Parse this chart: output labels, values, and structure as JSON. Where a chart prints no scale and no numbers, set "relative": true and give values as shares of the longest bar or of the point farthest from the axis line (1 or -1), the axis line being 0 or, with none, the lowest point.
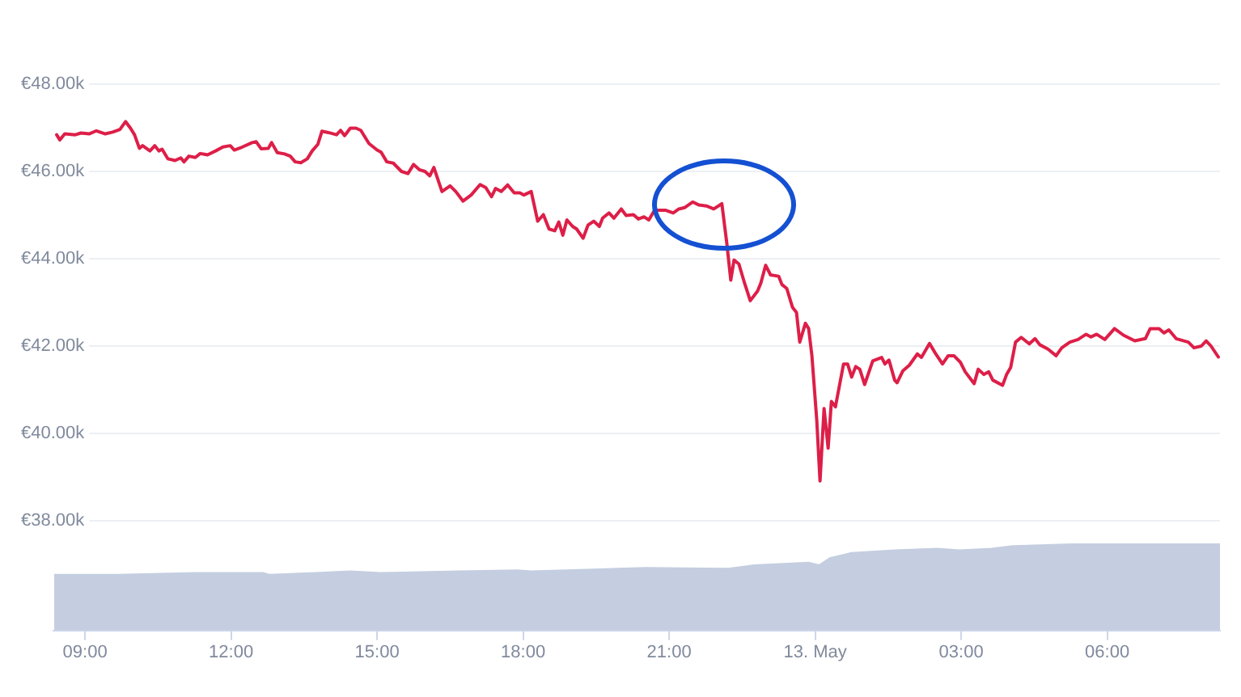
{
  "chart_data": [
    {
      "type": "line",
      "color": "#dd1f48",
      "x": [
        "--05-12T08:25",
        "--05-12T08:29",
        "--05-12T08:35",
        "--05-12T08:48",
        "--05-12T08:55",
        "--05-12T09:05",
        "--05-12T09:14",
        "--05-12T09:25",
        "--05-12T09:34",
        "--05-12T09:43",
        "--05-12T09:50",
        "--05-12T09:56",
        "--05-12T10:01",
        "--05-12T10:07",
        "--05-12T10:11",
        "--05-12T10:20",
        "--05-12T10:26",
        "--05-12T10:31",
        "--05-12T10:35",
        "--05-12T10:42",
        "--05-12T10:51",
        "--05-12T10:58",
        "--05-12T11:02",
        "--05-12T11:08",
        "--05-12T11:16",
        "--05-12T11:22",
        "--05-12T11:31",
        "--05-12T11:41",
        "--05-12T11:50",
        "--05-12T11:59",
        "--05-12T12:04",
        "--05-12T12:14",
        "--05-12T12:26",
        "--05-12T12:31",
        "--05-12T12:37",
        "--05-12T12:46",
        "--05-12T12:50",
        "--05-12T12:57",
        "--05-12T13:06",
        "--05-12T13:13",
        "--05-12T13:19",
        "--05-12T13:26",
        "--05-12T13:34",
        "--05-12T13:40",
        "--05-12T13:47",
        "--05-12T13:52",
        "--05-12T14:00",
        "--05-12T14:10",
        "--05-12T14:15",
        "--05-12T14:20",
        "--05-12T14:27",
        "--05-12T14:34",
        "--05-12T14:40",
        "--05-12T14:50",
        "--05-12T15:00",
        "--05-12T15:05",
        "--05-12T15:12",
        "--05-12T15:20",
        "--05-12T15:30",
        "--05-12T15:38",
        "--05-12T15:45",
        "--05-12T15:52",
        "--05-12T15:59",
        "--05-12T16:05",
        "--05-12T16:10",
        "--05-12T16:20",
        "--05-12T16:30",
        "--05-12T16:37",
        "--05-12T16:46",
        "--05-12T16:56",
        "--05-12T17:07",
        "--05-12T17:14",
        "--05-12T17:21",
        "--05-12T17:26",
        "--05-12T17:33",
        "--05-12T17:41",
        "--05-12T17:49",
        "--05-12T17:56",
        "--05-12T18:01",
        "--05-12T18:10",
        "--05-12T18:18",
        "--05-12T18:25",
        "--05-12T18:32",
        "--05-12T18:39",
        "--05-12T18:44",
        "--05-12T18:49",
        "--05-12T18:54",
        "--05-12T19:01",
        "--05-12T19:06",
        "--05-12T19:14",
        "--05-12T19:20",
        "--05-12T19:27",
        "--05-12T19:34",
        "--05-12T19:38",
        "--05-12T19:46",
        "--05-12T19:52",
        "--05-12T20:01",
        "--05-12T20:07",
        "--05-12T20:16",
        "--05-12T20:22",
        "--05-12T20:29",
        "--05-12T20:35",
        "--05-12T20:42",
        "--05-12T20:56",
        "--05-12T21:05",
        "--05-12T21:12",
        "--05-12T21:19",
        "--05-12T21:29",
        "--05-12T21:37",
        "--05-12T21:46",
        "--05-12T21:55",
        "--05-12T22:05",
        "--05-12T22:11",
        "--05-12T22:16",
        "--05-12T22:20",
        "--05-12T22:26",
        "--05-12T22:33",
        "--05-12T22:40",
        "--05-12T22:49",
        "--05-12T22:53",
        "--05-12T22:59",
        "--05-12T23:05",
        "--05-12T23:15",
        "--05-12T23:19",
        "--05-12T23:25",
        "--05-12T23:32",
        "--05-12T23:37",
        "--05-12T23:41",
        "--05-12T23:48",
        "--05-12T23:52",
        "--05-12T23:56",
        "--05-13T00:02",
        "--05-13T00:06",
        "--05-13T00:11",
        "--05-13T00:16",
        "--05-13T00:20",
        "--05-13T00:25",
        "--05-13T00:35",
        "--05-13T00:40",
        "--05-13T00:45",
        "--05-13T00:50",
        "--05-13T00:55",
        "--05-13T01:01",
        "--05-13T01:11",
        "--05-13T01:22",
        "--05-13T01:26",
        "--05-13T01:31",
        "--05-13T01:38",
        "--05-13T01:41",
        "--05-13T01:48",
        "--05-13T01:56",
        "--05-13T02:06",
        "--05-13T02:11",
        "--05-13T02:21",
        "--05-13T02:28",
        "--05-13T02:37",
        "--05-13T02:44",
        "--05-13T02:51",
        "--05-13T02:59",
        "--05-13T03:05",
        "--05-13T03:16",
        "--05-13T03:21",
        "--05-13T03:28",
        "--05-13T03:34",
        "--05-13T03:39",
        "--05-13T03:51",
        "--05-13T03:56",
        "--05-13T04:01",
        "--05-13T04:07",
        "--05-13T04:14",
        "--05-13T04:24",
        "--05-13T04:31",
        "--05-13T04:37",
        "--05-13T04:47",
        "--05-13T04:57",
        "--05-13T05:04",
        "--05-13T05:14",
        "--05-13T05:24",
        "--05-13T05:34",
        "--05-13T05:40",
        "--05-13T05:47",
        "--05-13T05:57",
        "--05-13T06:09",
        "--05-13T06:20",
        "--05-13T06:34",
        "--05-13T06:47",
        "--05-13T06:53",
        "--05-13T07:04",
        "--05-13T07:10",
        "--05-13T07:16",
        "--05-13T07:25",
        "--05-13T07:40",
        "--05-13T07:47",
        "--05-13T07:56",
        "--05-13T08:02",
        "--05-13T08:08",
        "--05-13T08:17"
      ],
      "values": [
        46840,
        46720,
        46860,
        46840,
        46880,
        46860,
        46930,
        46860,
        46900,
        46960,
        47140,
        46990,
        46840,
        46530,
        46590,
        46470,
        46590,
        46470,
        46510,
        46290,
        46250,
        46310,
        46220,
        46350,
        46320,
        46410,
        46380,
        46470,
        46560,
        46590,
        46490,
        46560,
        46660,
        46680,
        46520,
        46530,
        46660,
        46430,
        46400,
        46350,
        46220,
        46200,
        46290,
        46470,
        46620,
        46920,
        46890,
        46840,
        46940,
        46820,
        46990,
        46990,
        46940,
        46640,
        46490,
        46440,
        46220,
        46190,
        46000,
        45950,
        46160,
        46040,
        46000,
        45900,
        46090,
        45540,
        45670,
        45540,
        45320,
        45460,
        45700,
        45630,
        45420,
        45610,
        45540,
        45690,
        45510,
        45510,
        45460,
        45540,
        44860,
        45010,
        44680,
        44640,
        44840,
        44540,
        44890,
        44740,
        44680,
        44470,
        44770,
        44860,
        44740,
        44930,
        45050,
        44930,
        45140,
        44990,
        45010,
        44910,
        44960,
        44890,
        45110,
        45110,
        45050,
        45140,
        45170,
        45300,
        45230,
        45210,
        45140,
        45260,
        44370,
        43510,
        43970,
        43880,
        43440,
        43040,
        43260,
        43440,
        43850,
        43630,
        43600,
        43410,
        43320,
        42890,
        42770,
        42090,
        42520,
        42400,
        41780,
        40300,
        38910,
        40570,
        39660,
        40730,
        40610,
        41590,
        41590,
        41290,
        41530,
        41470,
        41120,
        41660,
        41740,
        41590,
        41680,
        41220,
        41160,
        41430,
        41560,
        41820,
        41740,
        42060,
        41840,
        41590,
        41780,
        41780,
        41630,
        41410,
        41140,
        41470,
        41350,
        41410,
        41220,
        41100,
        41350,
        41510,
        42090,
        42200,
        42050,
        42170,
        42030,
        41930,
        41780,
        41960,
        42090,
        42150,
        42270,
        42210,
        42270,
        42150,
        42400,
        42250,
        42120,
        42170,
        42400,
        42400,
        42300,
        42370,
        42170,
        42090,
        41960,
        42000,
        42120,
        42000,
        41750
      ],
      "xlim": [
        "--05-12T08:21",
        "--05-13T08:19"
      ],
      "ylim": [
        38000,
        48000
      ],
      "yticks": [
        {
          "value": 38000,
          "label": "€38.00k"
        },
        {
          "value": 40000,
          "label": "€40.00k"
        },
        {
          "value": 42000,
          "label": "€42.00k"
        },
        {
          "value": 44000,
          "label": "€44.00k"
        },
        {
          "value": 46000,
          "label": "€46.00k"
        },
        {
          "value": 48000,
          "label": "€48.00k"
        }
      ],
      "grid": "y",
      "tick_labels": "y"
    },
    {
      "type": "area",
      "relative": true,
      "color": "#c4cee0",
      "x": [
        "--05-12T08:22",
        "--05-12T09:41",
        "--05-12T11:17",
        "--05-12T12:40",
        "--05-12T12:47",
        "--05-12T13:44",
        "--05-12T14:27",
        "--05-12T15:04",
        "--05-12T16:40",
        "--05-12T17:53",
        "--05-12T18:10",
        "--05-12T19:26",
        "--05-12T20:32",
        "--05-12T22:13",
        "--05-12T22:45",
        "--05-12T23:52",
        "--05-13T00:05",
        "--05-13T00:18",
        "--05-13T00:45",
        "--05-13T01:38",
        "--05-13T02:31",
        "--05-13T02:58",
        "--05-13T03:37",
        "--05-13T04:04",
        "--05-13T05:17",
        "--05-13T07:10",
        "--05-13T08:04",
        "--05-13T08:19"
      ],
      "values": [
        0.64,
        0.64,
        0.66,
        0.66,
        0.64,
        0.66,
        0.68,
        0.66,
        0.68,
        0.69,
        0.68,
        0.7,
        0.72,
        0.71,
        0.75,
        0.78,
        0.75,
        0.83,
        0.89,
        0.92,
        0.94,
        0.92,
        0.94,
        0.97,
        0.99,
        1,
        1,
        0.99
      ],
      "xlim": [
        "--05-12T08:21",
        "--05-13T08:19"
      ],
      "xticks": [
        {
          "value": "--05-12T09:00",
          "label": "09:00"
        },
        {
          "value": "--05-12T12:00",
          "label": "12:00"
        },
        {
          "value": "--05-12T15:00",
          "label": "15:00"
        },
        {
          "value": "--05-12T18:00",
          "label": "18:00"
        },
        {
          "value": "--05-12T21:00",
          "label": "21:00"
        },
        {
          "value": "--05-13T00:00",
          "label": "13. May"
        },
        {
          "value": "--05-13T03:00",
          "label": "03:00"
        },
        {
          "value": "--05-13T06:00",
          "label": "06:00"
        }
      ],
      "tick_labels": "x"
    }
  ]
}
